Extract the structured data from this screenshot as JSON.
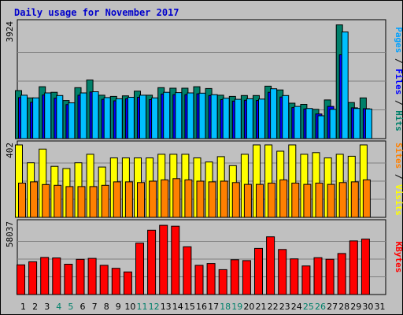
{
  "chart_data": {
    "type": "bar",
    "title": "Daily usage for November 2017",
    "categories": [
      "1",
      "2",
      "3",
      "4",
      "5",
      "6",
      "7",
      "8",
      "9",
      "10",
      "11",
      "12",
      "13",
      "14",
      "15",
      "16",
      "17",
      "18",
      "19",
      "20",
      "21",
      "22",
      "23",
      "24",
      "25",
      "26",
      "27",
      "28",
      "29",
      "30",
      "31"
    ],
    "weekend_days": [
      "4",
      "5",
      "11",
      "12",
      "18",
      "19",
      "25",
      "26"
    ],
    "top_panel": {
      "ymax_label": "3924",
      "ymax": 3924,
      "side_labels": [
        {
          "text": "Pages",
          "color": "#00a0ff"
        },
        {
          "text": " / ",
          "color": "#000000"
        },
        {
          "text": "Files",
          "color": "#0000ff"
        },
        {
          "text": " / ",
          "color": "#000000"
        },
        {
          "text": "Hits",
          "color": "#00806a"
        }
      ],
      "series": [
        {
          "name": "Hits",
          "color": "#00806a",
          "values": [
            1640,
            1390,
            1770,
            1580,
            1300,
            1740,
            2000,
            1480,
            1440,
            1460,
            1620,
            1480,
            1740,
            1720,
            1720,
            1770,
            1710,
            1480,
            1440,
            1470,
            1470,
            1790,
            1660,
            1210,
            1170,
            1000,
            1320,
            3880,
            1230,
            1390,
            0
          ]
        },
        {
          "name": "Files",
          "color": "#0000ff",
          "values": [
            1400,
            1240,
            1490,
            1380,
            1160,
            1480,
            1590,
            1340,
            1290,
            1360,
            1410,
            1330,
            1520,
            1500,
            1500,
            1530,
            1470,
            1330,
            1280,
            1310,
            1300,
            1580,
            1420,
            1060,
            1010,
            840,
            1100,
            2860,
            1050,
            1020,
            0
          ]
        },
        {
          "name": "Pages",
          "color": "#00bfff",
          "values": [
            1480,
            1390,
            1560,
            1470,
            1220,
            1560,
            1600,
            1400,
            1360,
            1410,
            1480,
            1390,
            1580,
            1570,
            1560,
            1550,
            1500,
            1380,
            1340,
            1360,
            1350,
            1700,
            1470,
            1100,
            1030,
            780,
            1000,
            3640,
            1030,
            1010,
            0
          ]
        }
      ]
    },
    "middle_panel": {
      "ymax_label": "402",
      "ymax": 402,
      "side_labels": [
        {
          "text": "Sites",
          "color": "#ff8000"
        },
        {
          "text": " / ",
          "color": "#000000"
        },
        {
          "text": "Visits",
          "color": "#ffff00"
        }
      ],
      "series": [
        {
          "name": "Visits",
          "color": "#ffff00",
          "values": [
            402,
            303,
            379,
            283,
            271,
            303,
            350,
            279,
            330,
            330,
            330,
            330,
            350,
            350,
            350,
            330,
            307,
            337,
            287,
            350,
            402,
            402,
            367,
            402,
            350,
            359,
            330,
            350,
            339,
            402,
            0
          ]
        },
        {
          "name": "Sites",
          "color": "#ff8000",
          "values": [
            190,
            197,
            182,
            178,
            171,
            171,
            171,
            178,
            197,
            197,
            193,
            201,
            208,
            215,
            208,
            201,
            197,
            201,
            193,
            183,
            183,
            190,
            208,
            190,
            183,
            190,
            183,
            193,
            197,
            208,
            0
          ]
        }
      ]
    },
    "bottom_panel": {
      "ymax_label": "58037",
      "ymax": 58037,
      "side_labels": [
        {
          "text": "KBytes",
          "color": "#ff0000"
        }
      ],
      "series": [
        {
          "name": "KBytes",
          "color": "#ff0000",
          "values": [
            24300,
            26800,
            30400,
            30000,
            24800,
            28800,
            29600,
            23900,
            21500,
            18500,
            42100,
            52700,
            56700,
            56000,
            39100,
            23900,
            25400,
            20400,
            28500,
            27800,
            37800,
            47300,
            36900,
            29200,
            23400,
            30200,
            28900,
            33600,
            43900,
            45400,
            0
          ]
        }
      ]
    }
  }
}
